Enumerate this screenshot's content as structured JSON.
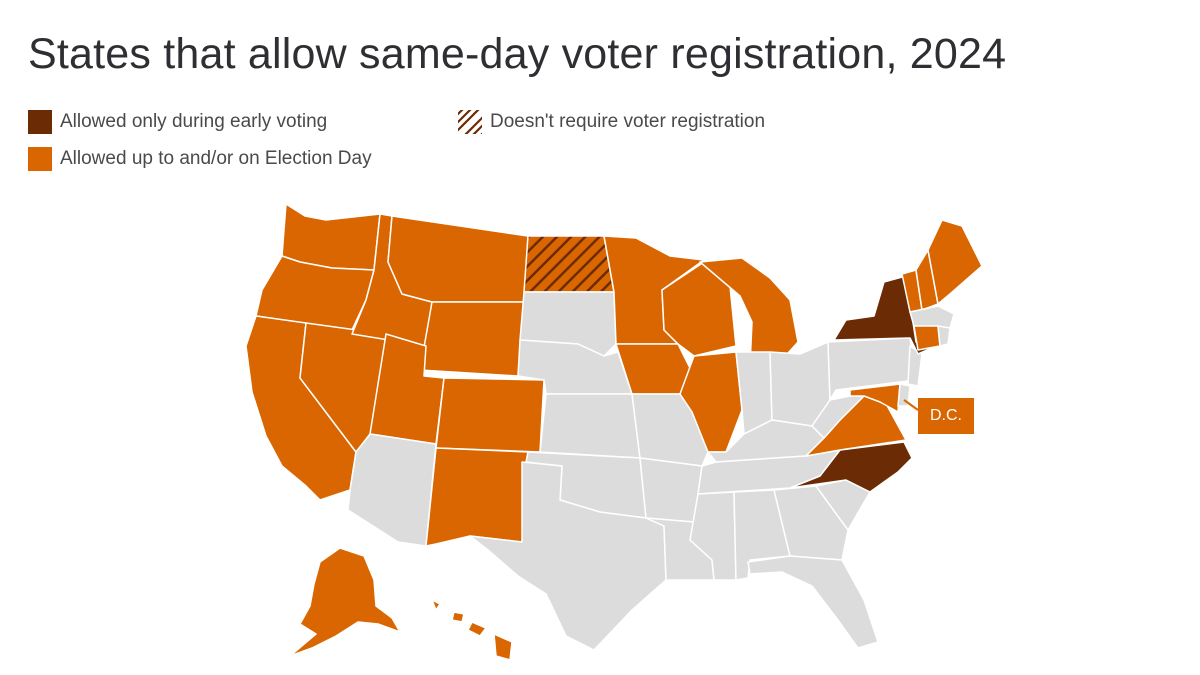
{
  "title": "States that allow same-day voter registration, 2024",
  "legend": {
    "early_voting": "Allowed only during early voting",
    "election_day": "Allowed up to and/or on Election Day",
    "no_registration": "Doesn't require voter registration"
  },
  "colors": {
    "early_voting": "#6b2c05",
    "election_day": "#d96600",
    "none": "#dcdcdc",
    "border": "#ffffff"
  },
  "dc_label": "D.C.",
  "map_data": {
    "election_day": [
      "WA",
      "OR",
      "CA",
      "NV",
      "ID",
      "MT",
      "WY",
      "UT",
      "CO",
      "NM",
      "MN",
      "WI",
      "MI",
      "IA",
      "IL",
      "VA",
      "MD",
      "VT",
      "NH",
      "ME",
      "CT",
      "AK",
      "HI",
      "DC"
    ],
    "early_voting": [
      "NY",
      "NC"
    ],
    "no_registration": [
      "ND"
    ],
    "none": [
      "AZ",
      "TX",
      "OK",
      "KS",
      "NE",
      "SD",
      "MO",
      "AR",
      "LA",
      "MS",
      "AL",
      "GA",
      "FL",
      "SC",
      "TN",
      "KY",
      "IN",
      "OH",
      "WV",
      "PA",
      "NJ",
      "DE",
      "MA",
      "RI"
    ]
  }
}
